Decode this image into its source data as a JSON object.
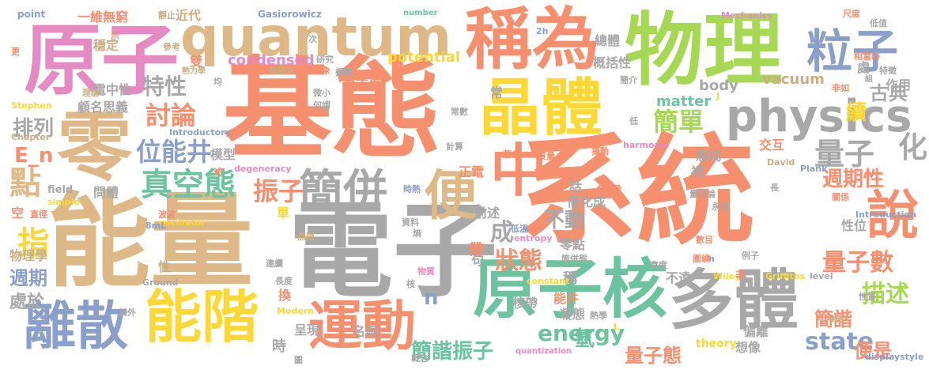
{
  "colors": {
    "salmon": "#f58f6e",
    "tan": "#deb887",
    "gray": "#a8a8a8",
    "green": "#6cc3a0",
    "lime": "#a6d854",
    "pink": "#e58ac3",
    "blue": "#8a9fc9",
    "yellow": "#fdd834",
    "brown": "#c9ae83"
  },
  "words": [
    {
      "text": "系統",
      "color": "salmon"
    },
    {
      "text": "基態",
      "color": "salmon"
    },
    {
      "text": "能量",
      "color": "tan"
    },
    {
      "text": "電子",
      "color": "gray"
    },
    {
      "text": "原子",
      "color": "pink"
    },
    {
      "text": "零",
      "color": "tan"
    },
    {
      "text": "quantum",
      "color": "tan"
    },
    {
      "text": "稱為",
      "color": "salmon"
    },
    {
      "text": "物理",
      "color": "lime"
    },
    {
      "text": "晶體",
      "color": "yellow"
    },
    {
      "text": "粒子",
      "color": "blue"
    },
    {
      "text": "physics",
      "color": "gray"
    },
    {
      "text": "中",
      "color": "salmon"
    },
    {
      "text": "原子核",
      "color": "green"
    },
    {
      "text": "多體",
      "color": "gray"
    },
    {
      "text": "能階",
      "color": "yellow"
    },
    {
      "text": "運動",
      "color": "salmon"
    },
    {
      "text": "離散",
      "color": "blue"
    },
    {
      "text": "簡併",
      "color": "gray"
    },
    {
      "text": "便",
      "color": "tan"
    },
    {
      "text": "說",
      "color": "salmon"
    },
    {
      "text": "量子",
      "color": "gray"
    },
    {
      "text": "化",
      "color": "gray"
    },
    {
      "text": "空態",
      "color": "green"
    },
    {
      "text": "真",
      "color": "green"
    },
    {
      "text": "位能井",
      "color": "blue"
    },
    {
      "text": "振子",
      "color": "salmon"
    },
    {
      "text": "特性",
      "color": "gray"
    },
    {
      "text": "討論",
      "color": "salmon"
    },
    {
      "text": "簡單",
      "color": "lime"
    },
    {
      "text": "古典",
      "color": "gray"
    },
    {
      "text": "續",
      "color": "yellow"
    },
    {
      "text": "週期性",
      "color": "salmon"
    },
    {
      "text": "量子數",
      "color": "salmon"
    },
    {
      "text": "描述",
      "color": "lime"
    },
    {
      "text": "簡諧",
      "color": "salmon"
    },
    {
      "text": "簡諧振子",
      "color": "green"
    },
    {
      "text": "狀態",
      "color": "salmon"
    },
    {
      "text": "量子態",
      "color": "salmon"
    },
    {
      "text": "energy",
      "color": "green"
    },
    {
      "text": "state",
      "color": "blue"
    },
    {
      "text": "便是",
      "color": "salmon"
    },
    {
      "text": "點",
      "color": "tan"
    },
    {
      "text": "指",
      "color": "yellow"
    },
    {
      "text": "週期",
      "color": "blue"
    },
    {
      "text": "排列",
      "color": "gray"
    },
    {
      "text": "處於",
      "color": "gray"
    },
    {
      "text": "E_n",
      "color": "salmon"
    },
    {
      "text": "n",
      "color": "blue"
    },
    {
      "text": "不動",
      "color": "gray"
    },
    {
      "text": "成",
      "color": "gray"
    },
    {
      "text": "氫",
      "color": "green"
    },
    {
      "text": "condensed",
      "color": "pink"
    },
    {
      "text": "potential",
      "color": "yellow"
    },
    {
      "text": "vacuum",
      "color": "brown"
    },
    {
      "text": "matter",
      "color": "green"
    },
    {
      "text": "body",
      "color": "gray"
    },
    {
      "text": "概括性",
      "color": "gray"
    },
    {
      "text": "總體",
      "color": "gray"
    },
    {
      "text": "量子場",
      "color": "salmon"
    },
    {
      "text": "雙",
      "color": "salmon"
    },
    {
      "text": "模型",
      "color": "gray"
    },
    {
      "text": "稱",
      "color": "gray"
    },
    {
      "text": "一維無窮",
      "color": "salmon"
    },
    {
      "text": "近代",
      "color": "brown"
    },
    {
      "text": "穩定",
      "color": "brown"
    },
    {
      "text": "電中性",
      "color": "gray"
    },
    {
      "text": "顧名思義",
      "color": "gray"
    },
    {
      "text": "處",
      "color": "gray"
    },
    {
      "text": "作用",
      "color": "gray"
    },
    {
      "text": "交互",
      "color": "salmon"
    },
    {
      "text": "想成",
      "color": "gray"
    },
    {
      "text": "裡",
      "color": "gray"
    },
    {
      "text": "性位",
      "color": "gray"
    },
    {
      "text": "負電",
      "color": "salmon"
    },
    {
      "text": "正電",
      "color": "salmon"
    },
    {
      "text": "能井",
      "color": "salmon"
    },
    {
      "text": "前述",
      "color": "gray"
    },
    {
      "text": "簡化成",
      "color": "gray"
    },
    {
      "text": "零點",
      "color": "gray"
    },
    {
      "text": "核帶",
      "color": "gray"
    },
    {
      "text": "凝態",
      "color": "gray"
    },
    {
      "text": "名詞",
      "color": "gray"
    },
    {
      "text": "呈現",
      "color": "gray"
    },
    {
      "text": "時",
      "color": "gray"
    },
    {
      "text": "偏離",
      "color": "gray"
    },
    {
      "text": "想像",
      "color": "gray"
    },
    {
      "text": "帶",
      "color": "salmon"
    },
    {
      "text": "不遠",
      "color": "gray"
    },
    {
      "text": "換",
      "color": "salmon"
    },
    {
      "text": "單",
      "color": "yellow"
    },
    {
      "text": "物理學",
      "color": "brown"
    },
    {
      "text": "性",
      "color": "brown"
    },
    {
      "text": "空",
      "color": "salmon"
    },
    {
      "text": "field",
      "color": "gray"
    },
    {
      "text": "theory",
      "color": "yellow"
    },
    {
      "text": "Gasiorowicz",
      "color": "blue"
    },
    {
      "text": "number",
      "color": "green"
    },
    {
      "text": "point",
      "color": "blue"
    },
    {
      "text": "Mechanics",
      "color": "pink"
    },
    {
      "text": "Stephen",
      "color": "yellow"
    },
    {
      "text": "Chapter",
      "color": "brown"
    },
    {
      "text": "Introductory",
      "color": "blue"
    },
    {
      "text": "harmonic",
      "color": "pink"
    },
    {
      "text": "David",
      "color": "brown"
    },
    {
      "text": "degeneracy",
      "color": "pink"
    },
    {
      "text": "simple",
      "color": "yellow"
    },
    {
      "text": "oscillator",
      "color": "yellow"
    },
    {
      "text": "8mL",
      "color": "blue"
    },
    {
      "text": "entropy",
      "color": "pink"
    },
    {
      "text": "Introduction",
      "color": "blue"
    },
    {
      "text": "Plank",
      "color": "blue"
    },
    {
      "text": "Modern",
      "color": "yellow"
    },
    {
      "text": "constant",
      "color": "yellow"
    },
    {
      "text": "Wiley",
      "color": "yellow"
    },
    {
      "text": "Griffiths",
      "color": "yellow"
    },
    {
      "text": "level",
      "color": "gray"
    },
    {
      "text": "Ground",
      "color": "gray"
    },
    {
      "text": "quantization",
      "color": "pink"
    },
    {
      "text": "displaystyle",
      "color": "blue"
    },
    {
      "text": "2h",
      "color": "blue"
    },
    {
      "text": "h",
      "color": "blue"
    },
    {
      "text": "L",
      "color": "yellow"
    },
    {
      "text": "J",
      "color": "yellow"
    },
    {
      "text": "靜止",
      "color": "brown"
    },
    {
      "text": "示",
      "color": "salmon"
    },
    {
      "text": "參考",
      "color": "brown"
    },
    {
      "text": "次",
      "color": "gray"
    },
    {
      "text": "研究",
      "color": "gray"
    },
    {
      "text": "現象",
      "color": "salmon"
    },
    {
      "text": "普朗克",
      "color": "brown"
    },
    {
      "text": "振動",
      "color": "gray"
    },
    {
      "text": "熱力學",
      "color": "brown"
    },
    {
      "text": "均",
      "color": "gray"
    },
    {
      "text": "理論",
      "color": "brown"
    },
    {
      "text": "微小",
      "color": "gray"
    },
    {
      "text": "何謂",
      "color": "gray"
    },
    {
      "text": "常數",
      "color": "gray"
    },
    {
      "text": "計算",
      "color": "gray"
    },
    {
      "text": "話",
      "color": "gray"
    },
    {
      "text": "著名",
      "color": "salmon"
    },
    {
      "text": "質量",
      "color": "salmon"
    },
    {
      "text": "擾動",
      "color": "salmon"
    },
    {
      "text": "時熱",
      "color": "blue"
    },
    {
      "text": "問體",
      "color": "gray"
    },
    {
      "text": "資料",
      "color": "gray"
    },
    {
      "text": "波波",
      "color": "salmon"
    },
    {
      "text": "低溫",
      "color": "blue"
    },
    {
      "text": "箇併態",
      "color": "gray"
    },
    {
      "text": "熵",
      "color": "gray"
    },
    {
      "text": "無限",
      "color": "brown"
    },
    {
      "text": "直徑",
      "color": "salmon"
    },
    {
      "text": "連續",
      "color": "gray"
    },
    {
      "text": "長度",
      "color": "gray"
    },
    {
      "text": "句",
      "color": "gray"
    },
    {
      "text": "物質",
      "color": "pink"
    },
    {
      "text": "核",
      "color": "gray"
    },
    {
      "text": "其外",
      "color": "gray"
    },
    {
      "text": "概念",
      "color": "gray"
    },
    {
      "text": "圖",
      "color": "gray"
    },
    {
      "text": "熱學",
      "color": "gray"
    },
    {
      "text": "寬度",
      "color": "gray"
    },
    {
      "text": "圍繞",
      "color": "salmon"
    },
    {
      "text": "非",
      "color": "salmon"
    },
    {
      "text": "數目",
      "color": "salmon"
    },
    {
      "text": "例子",
      "color": "gray"
    },
    {
      "text": "性質",
      "color": "gray"
    },
    {
      "text": "數字",
      "color": "brown"
    },
    {
      "text": "永遠",
      "color": "gray"
    },
    {
      "text": "關係",
      "color": "salmon"
    },
    {
      "text": "量子論",
      "color": "gray"
    },
    {
      "text": "長",
      "color": "gray"
    },
    {
      "text": "非如",
      "color": "salmon"
    },
    {
      "text": "相當時",
      "color": "salmon"
    },
    {
      "text": "低值",
      "color": "gray"
    },
    {
      "text": "尺度",
      "color": "salmon"
    },
    {
      "text": "特徵",
      "color": "gray"
    },
    {
      "text": "組",
      "color": "gray"
    },
    {
      "text": "簡介",
      "color": "gray"
    },
    {
      "text": "常",
      "color": "gray"
    },
    {
      "text": "低",
      "color": "gray"
    },
    {
      "text": "述",
      "color": "salmon"
    },
    {
      "text": "更",
      "color": "salmon"
    }
  ]
}
